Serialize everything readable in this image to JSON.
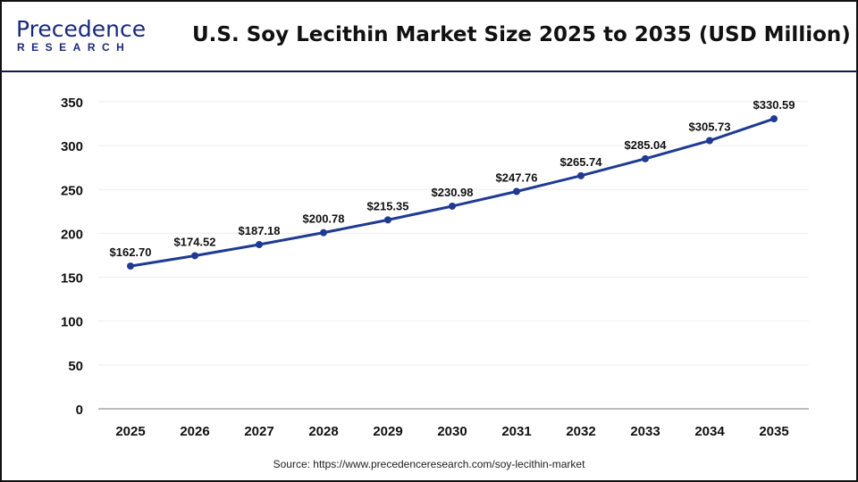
{
  "header": {
    "logo_top": "Precedence",
    "logo_bottom": "RESEARCH",
    "title": "U.S. Soy Lecithin Market Size 2025 to 2035 (USD Million)"
  },
  "source": "Source: https://www.precedenceresearch.com/soy-lecithin-market",
  "chart_data": {
    "type": "line",
    "title": "U.S. Soy Lecithin Market Size 2025 to 2035 (USD Million)",
    "categories": [
      "2025",
      "2026",
      "2027",
      "2028",
      "2029",
      "2030",
      "2031",
      "2032",
      "2033",
      "2034",
      "2035"
    ],
    "values": [
      162.7,
      174.52,
      187.18,
      200.78,
      215.35,
      230.98,
      247.76,
      265.74,
      285.04,
      305.73,
      330.59
    ],
    "data_labels": [
      "$162.70",
      "$174.52",
      "$187.18",
      "$200.78",
      "$215.35",
      "$230.98",
      "$247.76",
      "$265.74",
      "$285.04",
      "$305.73",
      "$330.59"
    ],
    "yticks": [
      0,
      50,
      100,
      150,
      200,
      250,
      300,
      350
    ],
    "ylim": [
      0,
      350
    ],
    "grid": true,
    "legend": "none",
    "line_color": "#1f3a93"
  }
}
